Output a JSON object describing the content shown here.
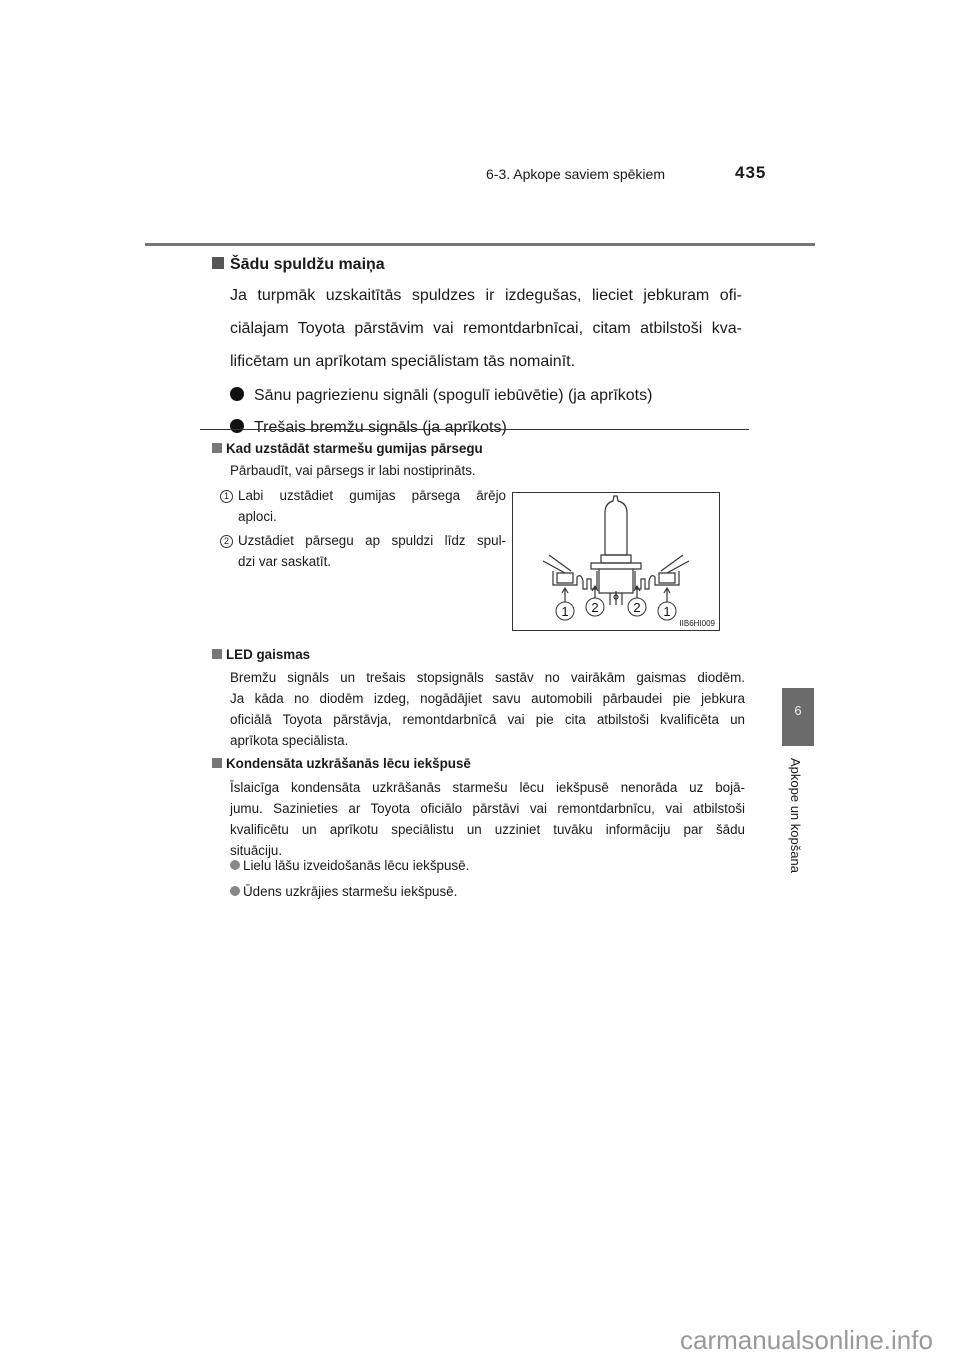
{
  "header": {
    "section": "6-3. Apkope saviem spēkiem",
    "page_number": "435"
  },
  "side_tab": {
    "chapter": "6",
    "label": "Apkope un kopšana"
  },
  "main": {
    "heading": "Šādu spuldžu maiņa",
    "lines": [
      "Ja turpmāk uzskaitītās spuldzes ir izdegušas, lieciet jebkuram ofi-",
      "ciālajam Toyota pārstāvim vai remontdarbnīcai, citam atbilstoši kva-",
      "lificētam un aprīkotam speciālistam tās nomainīt."
    ],
    "bullets": [
      "Sānu pagriezienu signāli (spogulī iebūvētie) (ja aprīkots)",
      "Trešais bremžu signāls (ja aprīkots)"
    ]
  },
  "notes": [
    {
      "heading": "Kad uzstādāt starmešu gumijas pārsegu",
      "lines": [
        "Pārbaudīt, vai pārsegs ir labi nostiprināts."
      ],
      "steps": [
        {
          "num": "1",
          "lines": [
            "Labi uzstādiet gumijas  pārsega ārējo",
            "aploci."
          ]
        },
        {
          "num": "2",
          "lines": [
            "Uzstādiet pārsegu ap spuldzi līdz spul-",
            "dzi var saskatīt."
          ]
        }
      ],
      "figure": {
        "code": "IIB6HI009",
        "callouts": [
          "1",
          "2",
          "2",
          "1"
        ]
      }
    },
    {
      "heading": "LED gaismas",
      "lines": [
        "Bremžu signāls un trešais stopsignāls sastāv no vairākām gaismas diodēm.",
        "Ja kāda no diodēm izdeg, nogādājiet savu automobili pārbaudei pie jebkura",
        "oficiālā Toyota pārstāvja, remontdarbnīcā vai pie cita atbilstoši kvalificēta un",
        "aprīkota speciālista."
      ]
    },
    {
      "heading": "Kondensāta uzkrāšanās lēcu iekšpusē",
      "lines": [
        "Īslaicīga kondensāta uzkrāšanās starmešu lēcu iekšpusē nenorāda uz bojā-",
        "jumu. Sazinieties ar Toyota oficiālo pārstāvi vai remontdarbnīcu, vai  atbilstoši",
        "kvalificētu un aprīkotu speciālistu un uzziniet tuvāku informāciju par šādu",
        "situāciju."
      ],
      "bullets": [
        "Lielu lāšu izveidošanās lēcu iekšpusē.",
        "Ūdens uzkrājies starmešu iekšpusē."
      ]
    }
  ],
  "watermark": "carmanualsonline.info"
}
